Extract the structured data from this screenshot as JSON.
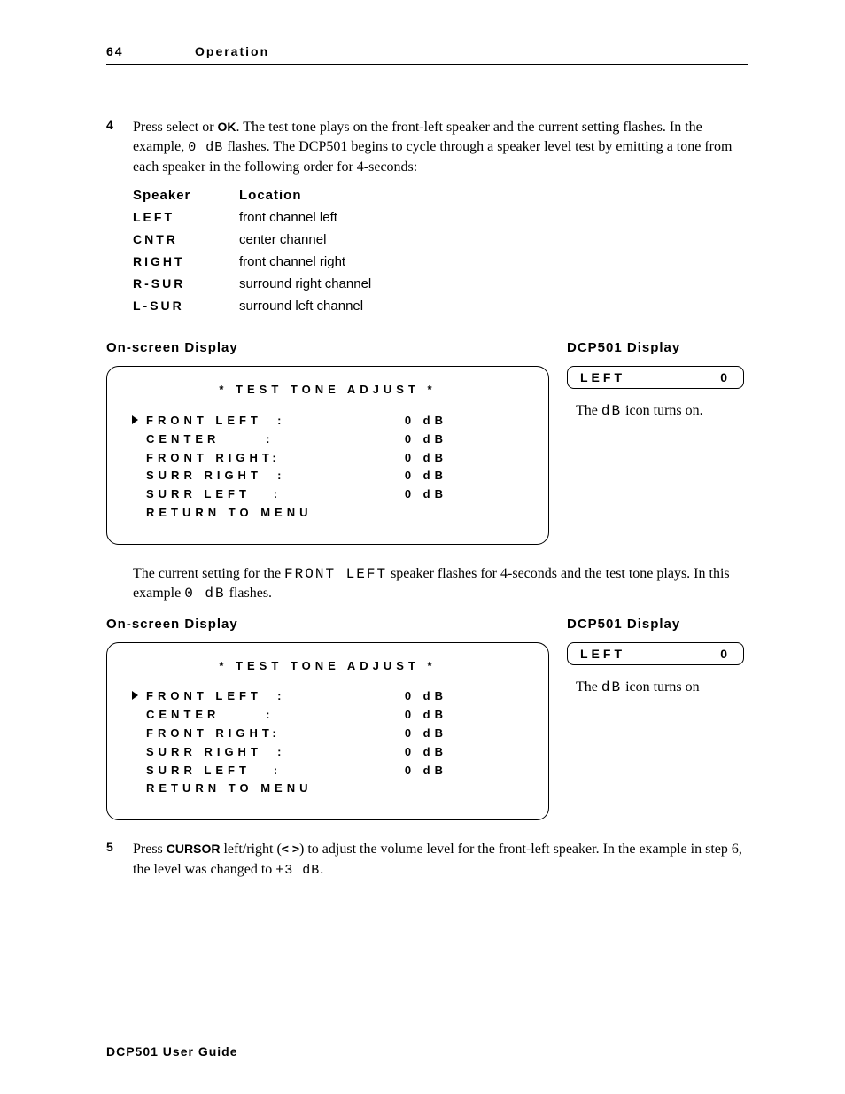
{
  "header": {
    "page_number": "64",
    "section": "Operation"
  },
  "step4": {
    "num": "4",
    "text_parts": {
      "t1": "Press select or ",
      "ok": "OK",
      "t2": ". The test tone plays on the front-left speaker and the current setting flashes. In the example, ",
      "code1": "0 dB",
      "t3": " flashes. The DCP501 begins to cycle through a speaker level test by emitting a tone from each speaker in the following order for 4-seconds:"
    }
  },
  "speaker_table": {
    "head_speaker": "Speaker",
    "head_location": "Location",
    "rows": [
      {
        "code": "LEFT",
        "loc": "front channel left"
      },
      {
        "code": "CNTR",
        "loc": "center channel"
      },
      {
        "code": "RIGHT",
        "loc": "front channel right"
      },
      {
        "code": "R-SUR",
        "loc": "surround right channel"
      },
      {
        "code": "L-SUR",
        "loc": "surround left channel"
      }
    ]
  },
  "labels": {
    "osd": "On-screen Display",
    "dcp": "DCP501 Display"
  },
  "osd": {
    "title": "*  TEST  TONE  ADJUST  *",
    "lines": [
      {
        "cursor": true,
        "name": "FRONT  LEFT",
        "sep": ":",
        "val": "0 dB"
      },
      {
        "cursor": false,
        "name": "CENTER",
        "sep": ":",
        "val": "0 dB"
      },
      {
        "cursor": false,
        "name": "FRONT  RIGHT",
        "sep": ":",
        "val": "0 dB"
      },
      {
        "cursor": false,
        "name": "SURR  RIGHT",
        "sep": ":",
        "val": "0 dB"
      },
      {
        "cursor": false,
        "name": "SURR  LEFT",
        "sep": ":",
        "val": "0 dB"
      },
      {
        "cursor": false,
        "name": "RETURN  TO  MENU",
        "sep": "",
        "val": ""
      }
    ]
  },
  "dcp_box": {
    "label": "LEFT",
    "value": "0"
  },
  "dcp_note1": {
    "pre": "The ",
    "code": "dB",
    "post": " icon turns on."
  },
  "mid_para": {
    "t1": "The current setting for the ",
    "code1": "FRONT LEFT",
    "t2": " speaker flashes for 4-seconds and the test tone plays. In this example ",
    "code2": "0 dB",
    "t3": " flashes."
  },
  "dcp_note2": {
    "pre": "The ",
    "code": "dB",
    "post": " icon turns on"
  },
  "step5": {
    "num": "5",
    "t1": "Press ",
    "cursor": "CURSOR",
    "t2": " left/right (",
    "arrows": "< >",
    "t3": ") to adjust the volume level for the front-left speaker. In the example in step 6, the level was changed to ",
    "code": "+3 dB",
    "t4": "."
  },
  "footer": "DCP501 User Guide"
}
